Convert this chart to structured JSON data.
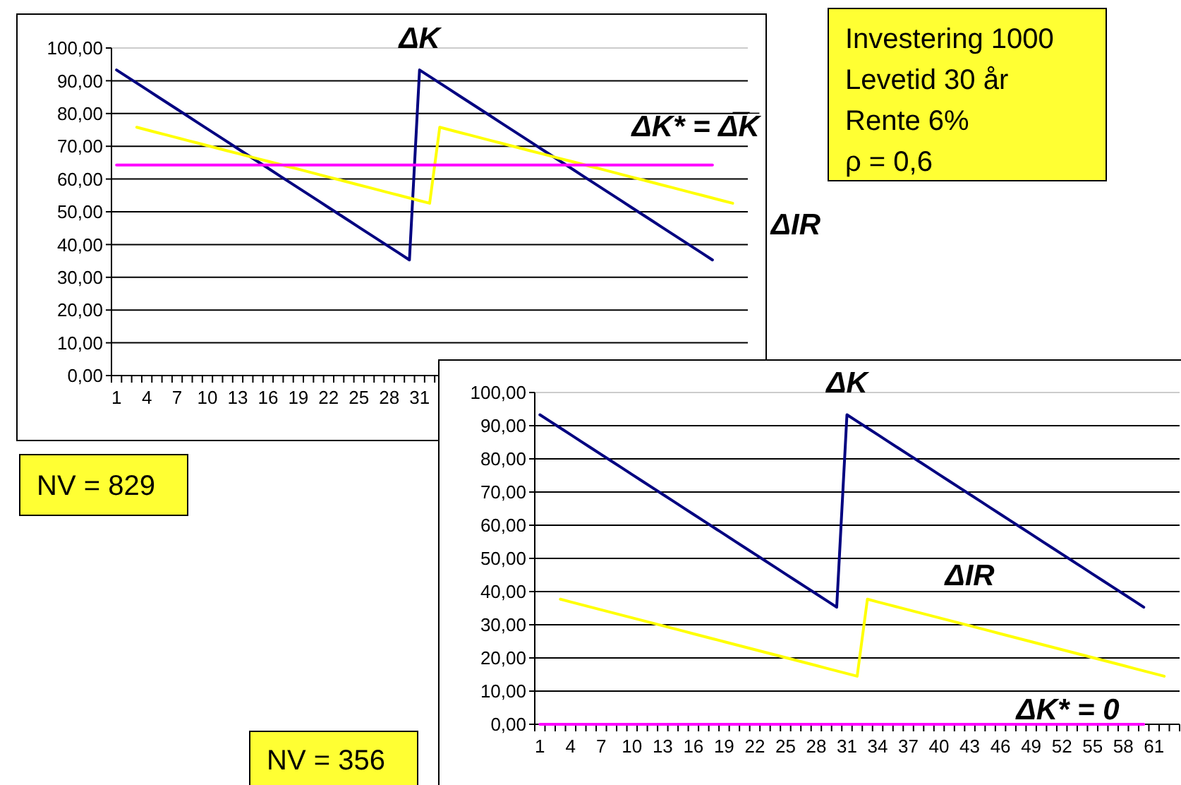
{
  "chart_data": [
    {
      "type": "line",
      "categories": [
        "1",
        null,
        null,
        "4",
        null,
        null,
        "7",
        null,
        null,
        "10",
        null,
        null,
        "13",
        null,
        null,
        "16",
        null,
        null,
        "19",
        null,
        null,
        "22",
        null,
        null,
        "25",
        null,
        null,
        "28",
        null,
        null,
        "31",
        null,
        null,
        null,
        null,
        null,
        null,
        null,
        null,
        null,
        null,
        null,
        null,
        null,
        null,
        null,
        null,
        null,
        null,
        null,
        null,
        null,
        null,
        null,
        null,
        null,
        null,
        null,
        null,
        null,
        null,
        null,
        null
      ],
      "ylim": [
        0,
        100
      ],
      "yticks": [
        {
          "value": 0,
          "label": "0,00"
        },
        {
          "value": 10,
          "label": "10,00"
        },
        {
          "value": 20,
          "label": "20,00"
        },
        {
          "value": 30,
          "label": "30,00"
        },
        {
          "value": 40,
          "label": "40,00"
        },
        {
          "value": 50,
          "label": "50,00"
        },
        {
          "value": 60,
          "label": "60,00"
        },
        {
          "value": 70,
          "label": "70,00"
        },
        {
          "value": 80,
          "label": "80,00"
        },
        {
          "value": 90,
          "label": "90,00"
        },
        {
          "value": 100,
          "label": "100,00"
        }
      ],
      "grid": "y",
      "series": [
        {
          "name": "ΔK",
          "color": "#000080",
          "values": [
            93.3,
            91.3,
            89.3,
            87.3,
            85.3,
            83.3,
            81.3,
            79.3,
            77.3,
            75.3,
            73.3,
            71.3,
            69.3,
            67.3,
            65.3,
            63.3,
            61.3,
            59.3,
            57.3,
            55.3,
            53.3,
            51.3,
            49.3,
            47.3,
            45.3,
            43.3,
            41.3,
            39.3,
            37.3,
            35.3,
            93.3,
            91.3,
            89.3,
            87.3,
            85.3,
            83.3,
            81.3,
            79.3,
            77.3,
            75.3,
            73.3,
            71.3,
            69.3,
            67.3,
            65.3,
            63.3,
            61.3,
            59.3,
            57.3,
            55.3,
            53.3,
            51.3,
            49.3,
            47.3,
            45.3,
            43.3,
            41.3,
            39.3,
            37.3,
            35.3,
            null,
            null,
            null
          ]
        },
        {
          "name": "ΔIR",
          "color": "#ffff00",
          "values": [
            null,
            null,
            75.8,
            75.0,
            74.2,
            73.4,
            72.6,
            71.8,
            71.0,
            70.2,
            69.4,
            68.6,
            67.8,
            67.0,
            66.2,
            65.4,
            64.6,
            63.8,
            63.0,
            62.2,
            61.4,
            60.6,
            59.8,
            59.0,
            58.2,
            57.4,
            56.6,
            55.8,
            55.0,
            54.2,
            53.4,
            52.6,
            75.8,
            75.0,
            74.2,
            73.4,
            72.6,
            71.8,
            71.0,
            70.2,
            69.4,
            68.6,
            67.8,
            67.0,
            66.2,
            65.4,
            64.6,
            63.8,
            63.0,
            62.2,
            61.4,
            60.6,
            59.8,
            59.0,
            58.2,
            57.4,
            56.6,
            55.8,
            55.0,
            54.2,
            53.4,
            52.6,
            null
          ]
        },
        {
          "name": "ΔK* = Δ̅K̅",
          "color": "#ff00ff",
          "values": [
            64.3,
            64.3,
            64.3,
            64.3,
            64.3,
            64.3,
            64.3,
            64.3,
            64.3,
            64.3,
            64.3,
            64.3,
            64.3,
            64.3,
            64.3,
            64.3,
            64.3,
            64.3,
            64.3,
            64.3,
            64.3,
            64.3,
            64.3,
            64.3,
            64.3,
            64.3,
            64.3,
            64.3,
            64.3,
            64.3,
            64.3,
            64.3,
            64.3,
            64.3,
            64.3,
            64.3,
            64.3,
            64.3,
            64.3,
            64.3,
            64.3,
            64.3,
            64.3,
            64.3,
            64.3,
            64.3,
            64.3,
            64.3,
            64.3,
            64.3,
            64.3,
            64.3,
            64.3,
            64.3,
            64.3,
            64.3,
            64.3,
            64.3,
            64.3,
            64.3,
            null,
            null,
            null
          ]
        }
      ],
      "annotations": [
        "Investering 1000\nLevetid 30 år\nRente 6%\nρ = 0,6",
        "NV = 829"
      ]
    },
    {
      "type": "line",
      "categories": [
        "1",
        null,
        null,
        "4",
        null,
        null,
        "7",
        null,
        null,
        "10",
        null,
        null,
        "13",
        null,
        null,
        "16",
        null,
        null,
        "19",
        null,
        null,
        "22",
        null,
        null,
        "25",
        null,
        null,
        "28",
        null,
        null,
        "31",
        null,
        null,
        "34",
        null,
        null,
        "37",
        null,
        null,
        "40",
        null,
        null,
        "43",
        null,
        null,
        "46",
        null,
        null,
        "49",
        null,
        null,
        "52",
        null,
        null,
        "55",
        null,
        null,
        "58",
        null,
        null,
        "61",
        null,
        null
      ],
      "ylim": [
        0,
        100
      ],
      "yticks": [
        {
          "value": 0,
          "label": "0,00"
        },
        {
          "value": 10,
          "label": "10,00"
        },
        {
          "value": 20,
          "label": "20,00"
        },
        {
          "value": 30,
          "label": "30,00"
        },
        {
          "value": 40,
          "label": "40,00"
        },
        {
          "value": 50,
          "label": "50,00"
        },
        {
          "value": 60,
          "label": "60,00"
        },
        {
          "value": 70,
          "label": "70,00"
        },
        {
          "value": 80,
          "label": "80,00"
        },
        {
          "value": 90,
          "label": "90,00"
        },
        {
          "value": 100,
          "label": "100,00"
        }
      ],
      "grid": "y",
      "series": [
        {
          "name": "ΔK",
          "color": "#000080",
          "values": [
            93.3,
            91.3,
            89.3,
            87.3,
            85.3,
            83.3,
            81.3,
            79.3,
            77.3,
            75.3,
            73.3,
            71.3,
            69.3,
            67.3,
            65.3,
            63.3,
            61.3,
            59.3,
            57.3,
            55.3,
            53.3,
            51.3,
            49.3,
            47.3,
            45.3,
            43.3,
            41.3,
            39.3,
            37.3,
            35.3,
            93.3,
            91.3,
            89.3,
            87.3,
            85.3,
            83.3,
            81.3,
            79.3,
            77.3,
            75.3,
            73.3,
            71.3,
            69.3,
            67.3,
            65.3,
            63.3,
            61.3,
            59.3,
            57.3,
            55.3,
            53.3,
            51.3,
            49.3,
            47.3,
            45.3,
            43.3,
            41.3,
            39.3,
            37.3,
            35.3,
            null,
            null,
            null
          ]
        },
        {
          "name": "ΔIR",
          "color": "#ffff00",
          "values": [
            null,
            null,
            37.7,
            36.9,
            36.1,
            35.3,
            34.5,
            33.7,
            32.9,
            32.1,
            31.3,
            30.5,
            29.7,
            28.9,
            28.1,
            27.3,
            26.5,
            25.7,
            24.9,
            24.1,
            23.3,
            22.5,
            21.7,
            20.9,
            20.1,
            19.3,
            18.5,
            17.7,
            16.9,
            16.1,
            15.3,
            14.5,
            37.7,
            36.9,
            36.1,
            35.3,
            34.5,
            33.7,
            32.9,
            32.1,
            31.3,
            30.5,
            29.7,
            28.9,
            28.1,
            27.3,
            26.5,
            25.7,
            24.9,
            24.1,
            23.3,
            22.5,
            21.7,
            20.9,
            20.1,
            19.3,
            18.5,
            17.7,
            16.9,
            16.1,
            15.3,
            14.5,
            null
          ]
        },
        {
          "name": "ΔK* = 0",
          "color": "#ff00ff",
          "values": [
            0,
            0,
            0,
            0,
            0,
            0,
            0,
            0,
            0,
            0,
            0,
            0,
            0,
            0,
            0,
            0,
            0,
            0,
            0,
            0,
            0,
            0,
            0,
            0,
            0,
            0,
            0,
            0,
            0,
            0,
            0,
            0,
            0,
            0,
            0,
            0,
            0,
            0,
            0,
            0,
            0,
            0,
            0,
            0,
            0,
            0,
            0,
            0,
            0,
            0,
            0,
            0,
            0,
            0,
            0,
            0,
            0,
            0,
            0,
            0,
            null,
            null,
            null
          ]
        }
      ],
      "annotations": [
        "NV = 356"
      ]
    }
  ]
}
